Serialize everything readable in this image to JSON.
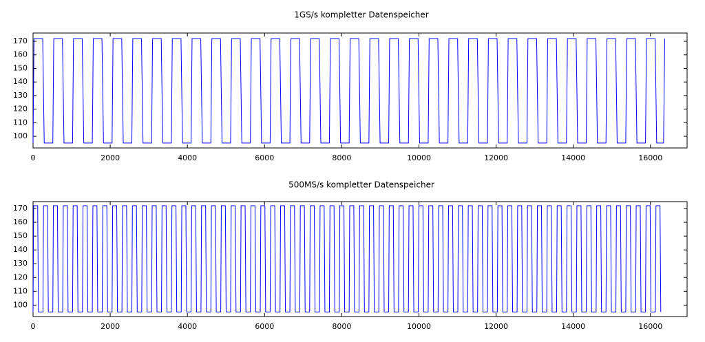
{
  "chart_data": [
    {
      "type": "line",
      "title": "1GS/s kompletter Datenspeicher",
      "xlim": [
        0,
        16950
      ],
      "ylim": [
        91.4,
        176.1
      ],
      "xticks": [
        0,
        2000,
        4000,
        6000,
        8000,
        10000,
        12000,
        14000,
        16000
      ],
      "yticks": [
        100,
        110,
        120,
        130,
        140,
        150,
        160,
        170
      ],
      "x": [
        0,
        25,
        250,
        290,
        512,
        537,
        762,
        802,
        1024,
        1049,
        1274,
        1314,
        1536,
        1561,
        1786,
        1826,
        2048,
        2073,
        2298,
        2338,
        2560,
        2585,
        2810,
        2850,
        3072,
        3097,
        3322,
        3362,
        3584,
        3609,
        3834,
        3874,
        4096,
        4121,
        4346,
        4386,
        4608,
        4633,
        4858,
        4898,
        5120,
        5145,
        5370,
        5410,
        5632,
        5657,
        5882,
        5922,
        6144,
        6169,
        6394,
        6434,
        6656,
        6681,
        6906,
        6946,
        7168,
        7193,
        7418,
        7458,
        7680,
        7705,
        7930,
        7970,
        8192,
        8217,
        8442,
        8482,
        8704,
        8729,
        8954,
        8994,
        9216,
        9241,
        9466,
        9506,
        9728,
        9753,
        9978,
        10018,
        10240,
        10265,
        10490,
        10530,
        10752,
        10777,
        11002,
        11042,
        11264,
        11289,
        11514,
        11554,
        11776,
        11801,
        12026,
        12066,
        12288,
        12313,
        12538,
        12578,
        12800,
        12825,
        13050,
        13090,
        13312,
        13337,
        13562,
        13602,
        13824,
        13849,
        14074,
        14114,
        14336,
        14361,
        14586,
        14626,
        14848,
        14873,
        15098,
        15138,
        15360,
        15385,
        15610,
        15650,
        15872,
        15897,
        16122,
        16162,
        16340,
        16370
      ],
      "series": [
        {
          "color": "#0000ff",
          "values": [
            95,
            172,
            172,
            95,
            95,
            172,
            172,
            95,
            95,
            172,
            172,
            95,
            95,
            172,
            172,
            95,
            95,
            172,
            172,
            95,
            95,
            172,
            172,
            95,
            95,
            172,
            172,
            95,
            95,
            172,
            172,
            95,
            95,
            172,
            172,
            95,
            95,
            172,
            172,
            95,
            95,
            172,
            172,
            95,
            95,
            172,
            172,
            95,
            95,
            172,
            172,
            95,
            95,
            172,
            172,
            95,
            95,
            172,
            172,
            95,
            95,
            172,
            172,
            95,
            95,
            172,
            172,
            95,
            95,
            172,
            172,
            95,
            95,
            172,
            172,
            95,
            95,
            172,
            172,
            95,
            95,
            172,
            172,
            95,
            95,
            172,
            172,
            95,
            95,
            172,
            172,
            95,
            95,
            172,
            172,
            95,
            95,
            172,
            172,
            95,
            95,
            172,
            172,
            95,
            95,
            172,
            172,
            95,
            95,
            172,
            172,
            95,
            95,
            172,
            172,
            95,
            95,
            172,
            172,
            95,
            95,
            172,
            172,
            95,
            95,
            172,
            172,
            95,
            95,
            172
          ]
        }
      ]
    },
    {
      "type": "line",
      "title": "500MS/s kompletter Datenspeicher",
      "xlim": [
        0,
        16950
      ],
      "ylim": [
        91.7,
        175
      ],
      "xticks": [
        0,
        2000,
        4000,
        6000,
        8000,
        10000,
        12000,
        14000,
        16000
      ],
      "yticks": [
        100,
        110,
        120,
        130,
        140,
        150,
        160,
        170
      ],
      "x": [
        0,
        15,
        120,
        140,
        256,
        271,
        376,
        396,
        512,
        527,
        632,
        652,
        768,
        783,
        888,
        908,
        1024,
        1039,
        1144,
        1164,
        1280,
        1295,
        1400,
        1420,
        1536,
        1551,
        1656,
        1676,
        1792,
        1807,
        1912,
        1932,
        2048,
        2063,
        2168,
        2188,
        2304,
        2319,
        2424,
        2444,
        2560,
        2575,
        2680,
        2700,
        2816,
        2831,
        2936,
        2956,
        3072,
        3087,
        3192,
        3212,
        3328,
        3343,
        3448,
        3468,
        3584,
        3599,
        3704,
        3724,
        3840,
        3855,
        3960,
        3980,
        4096,
        4111,
        4216,
        4236,
        4352,
        4367,
        4472,
        4492,
        4608,
        4623,
        4728,
        4748,
        4864,
        4879,
        4984,
        5004,
        5120,
        5135,
        5240,
        5260,
        5376,
        5391,
        5496,
        5516,
        5632,
        5647,
        5752,
        5772,
        5888,
        5903,
        6008,
        6028,
        6144,
        6159,
        6264,
        6284,
        6400,
        6415,
        6520,
        6540,
        6656,
        6671,
        6776,
        6796,
        6912,
        6927,
        7032,
        7052,
        7168,
        7183,
        7288,
        7308,
        7424,
        7439,
        7544,
        7564,
        7680,
        7695,
        7800,
        7820,
        7936,
        7951,
        8056,
        8076,
        8192,
        8207,
        8312,
        8332,
        8448,
        8463,
        8568,
        8588,
        8704,
        8719,
        8824,
        8844,
        8960,
        8975,
        9080,
        9100,
        9216,
        9231,
        9336,
        9356,
        9472,
        9487,
        9592,
        9612,
        9728,
        9743,
        9848,
        9868,
        9984,
        9999,
        10104,
        10124,
        10240,
        10255,
        10360,
        10380,
        10496,
        10511,
        10616,
        10636,
        10752,
        10767,
        10872,
        10892,
        11008,
        11023,
        11128,
        11148,
        11264,
        11279,
        11384,
        11404,
        11520,
        11535,
        11640,
        11660,
        11776,
        11791,
        11896,
        11916,
        12032,
        12047,
        12152,
        12172,
        12288,
        12303,
        12408,
        12428,
        12544,
        12559,
        12664,
        12684,
        12800,
        12815,
        12920,
        12940,
        13056,
        13071,
        13176,
        13196,
        13312,
        13327,
        13432,
        13452,
        13568,
        13583,
        13688,
        13708,
        13824,
        13839,
        13944,
        13964,
        14080,
        14095,
        14200,
        14220,
        14336,
        14351,
        14456,
        14476,
        14592,
        14607,
        14712,
        14732,
        14848,
        14863,
        14968,
        14988,
        15104,
        15119,
        15224,
        15244,
        15360,
        15375,
        15480,
        15500,
        15616,
        15631,
        15736,
        15756,
        15872,
        15887,
        15992,
        16012,
        16128,
        16143,
        16248,
        16268
      ],
      "series": [
        {
          "color": "#0000ff",
          "values": [
            95,
            172,
            172,
            95,
            95,
            172,
            172,
            95,
            95,
            172,
            172,
            95,
            95,
            172,
            172,
            95,
            95,
            172,
            172,
            95,
            95,
            172,
            172,
            95,
            95,
            172,
            172,
            95,
            95,
            172,
            172,
            95,
            95,
            172,
            172,
            95,
            95,
            172,
            172,
            95,
            95,
            172,
            172,
            95,
            95,
            172,
            172,
            95,
            95,
            172,
            172,
            95,
            95,
            172,
            172,
            95,
            95,
            172,
            172,
            95,
            95,
            172,
            172,
            95,
            95,
            172,
            172,
            95,
            95,
            172,
            172,
            95,
            95,
            172,
            172,
            95,
            95,
            172,
            172,
            95,
            95,
            172,
            172,
            95,
            95,
            172,
            172,
            95,
            95,
            172,
            172,
            95,
            95,
            172,
            172,
            95,
            95,
            172,
            172,
            95,
            95,
            172,
            172,
            95,
            95,
            172,
            172,
            95,
            95,
            172,
            172,
            95,
            95,
            172,
            172,
            95,
            95,
            172,
            172,
            95,
            95,
            172,
            172,
            95,
            95,
            172,
            172,
            95,
            95,
            172,
            172,
            95,
            95,
            172,
            172,
            95,
            95,
            172,
            172,
            95,
            95,
            172,
            172,
            95,
            95,
            172,
            172,
            95,
            95,
            172,
            172,
            95,
            95,
            172,
            172,
            95,
            95,
            172,
            172,
            95,
            95,
            172,
            172,
            95,
            95,
            172,
            172,
            95,
            95,
            172,
            172,
            95,
            95,
            172,
            172,
            95,
            95,
            172,
            172,
            95,
            95,
            172,
            172,
            95,
            95,
            172,
            172,
            95,
            95,
            172,
            172,
            95,
            95,
            172,
            172,
            95,
            95,
            172,
            172,
            95,
            95,
            172,
            172,
            95,
            95,
            172,
            172,
            95,
            95,
            172,
            172,
            95,
            95,
            172,
            172,
            95,
            95,
            172,
            172,
            95,
            95,
            172,
            172,
            95,
            95,
            172,
            172,
            95,
            95,
            172,
            172,
            95,
            95,
            172,
            172,
            95,
            95,
            172,
            172,
            95,
            95,
            172,
            172,
            95,
            95,
            172,
            172,
            95,
            95,
            172,
            172,
            95,
            95,
            172,
            172,
            95
          ]
        }
      ]
    }
  ]
}
